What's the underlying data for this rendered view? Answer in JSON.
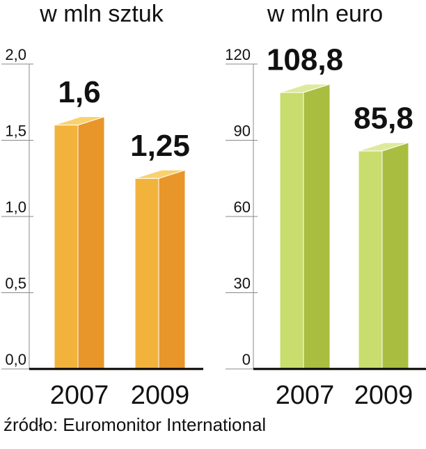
{
  "chart_data": [
    {
      "type": "bar3d",
      "title": "w mln sztuk",
      "categories": [
        "2007",
        "2009"
      ],
      "values": [
        1.6,
        1.25
      ],
      "value_labels": [
        "1,6",
        "1,25"
      ],
      "colors": {
        "front": "#f2b33c",
        "side": "#e8952a",
        "top": "#f9d16e"
      },
      "ylim": [
        0,
        2
      ],
      "yticks": [
        {
          "value": 0,
          "label": "0,0"
        },
        {
          "value": 0.5,
          "label": "0,5"
        },
        {
          "value": 1,
          "label": "1,0"
        },
        {
          "value": 1.5,
          "label": "1,5"
        },
        {
          "value": 2,
          "label": "2,0"
        }
      ]
    },
    {
      "type": "bar3d",
      "title": "w mln euro",
      "categories": [
        "2007",
        "2009"
      ],
      "values": [
        108.8,
        85.8
      ],
      "value_labels": [
        "108,8",
        "85,8"
      ],
      "colors": {
        "front": "#c9dc6e",
        "side": "#a9bd40",
        "top": "#dfe99c"
      },
      "ylim": [
        0,
        120
      ],
      "yticks": [
        0,
        30,
        60,
        90,
        120
      ]
    }
  ],
  "source": "źródło: Euromonitor International"
}
